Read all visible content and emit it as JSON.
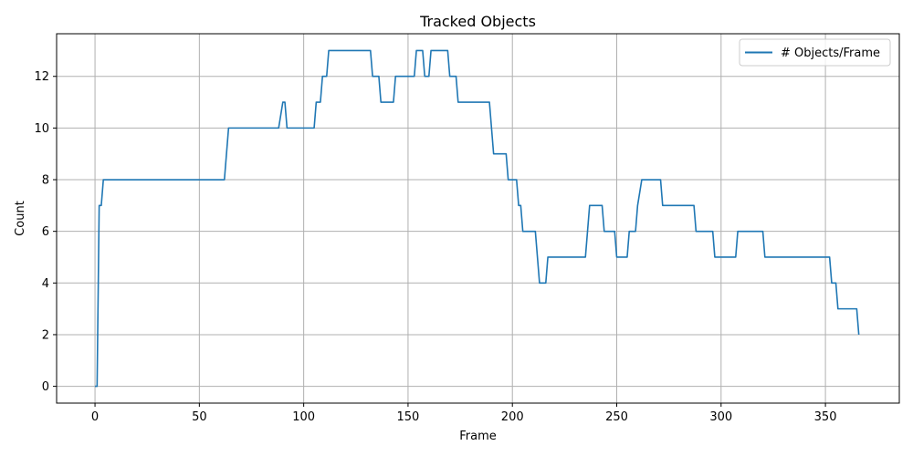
{
  "chart_data": {
    "type": "line",
    "title": "Tracked Objects",
    "xlabel": "Frame",
    "ylabel": "Count",
    "xlim": [
      -18.4,
      385.4
    ],
    "ylim": [
      -0.65,
      13.65
    ],
    "xticks": [
      0,
      50,
      100,
      150,
      200,
      250,
      300,
      350
    ],
    "yticks": [
      0,
      2,
      4,
      6,
      8,
      10,
      12
    ],
    "grid": true,
    "legend_position": "top-right",
    "series": [
      {
        "name": "# Objects/Frame",
        "color": "#1f77b4",
        "x": [
          0,
          1,
          2,
          3,
          4,
          62,
          64,
          88,
          90,
          91,
          92,
          105,
          106,
          107,
          108,
          109,
          110,
          111,
          112,
          132,
          133,
          134,
          135,
          136,
          137,
          143,
          144,
          153,
          154,
          157,
          158,
          160,
          161,
          169,
          170,
          171,
          172,
          173,
          174,
          189,
          191,
          197,
          198,
          201,
          202,
          203,
          204,
          205,
          211,
          213,
          215,
          216,
          217,
          235,
          237,
          243,
          244,
          249,
          250,
          252,
          255,
          256,
          257,
          259,
          260,
          262,
          271,
          272,
          287,
          288,
          296,
          297,
          307,
          308,
          320,
          321,
          352,
          353,
          354,
          355,
          356,
          365,
          366
        ],
        "y": [
          0,
          0,
          7,
          7,
          8,
          8,
          10,
          10,
          11,
          11,
          10,
          10,
          11,
          11,
          11,
          12,
          12,
          12,
          13,
          13,
          12,
          12,
          12,
          12,
          11,
          11,
          12,
          12,
          13,
          13,
          12,
          12,
          13,
          13,
          12,
          12,
          12,
          12,
          11,
          11,
          9,
          9,
          8,
          8,
          8,
          7,
          7,
          6,
          6,
          4,
          4,
          4,
          5,
          5,
          7,
          7,
          6,
          6,
          5,
          5,
          5,
          6,
          6,
          6,
          7,
          8,
          8,
          7,
          7,
          6,
          6,
          5,
          5,
          6,
          6,
          5,
          5,
          4,
          4,
          4,
          3,
          3,
          2
        ]
      }
    ]
  }
}
